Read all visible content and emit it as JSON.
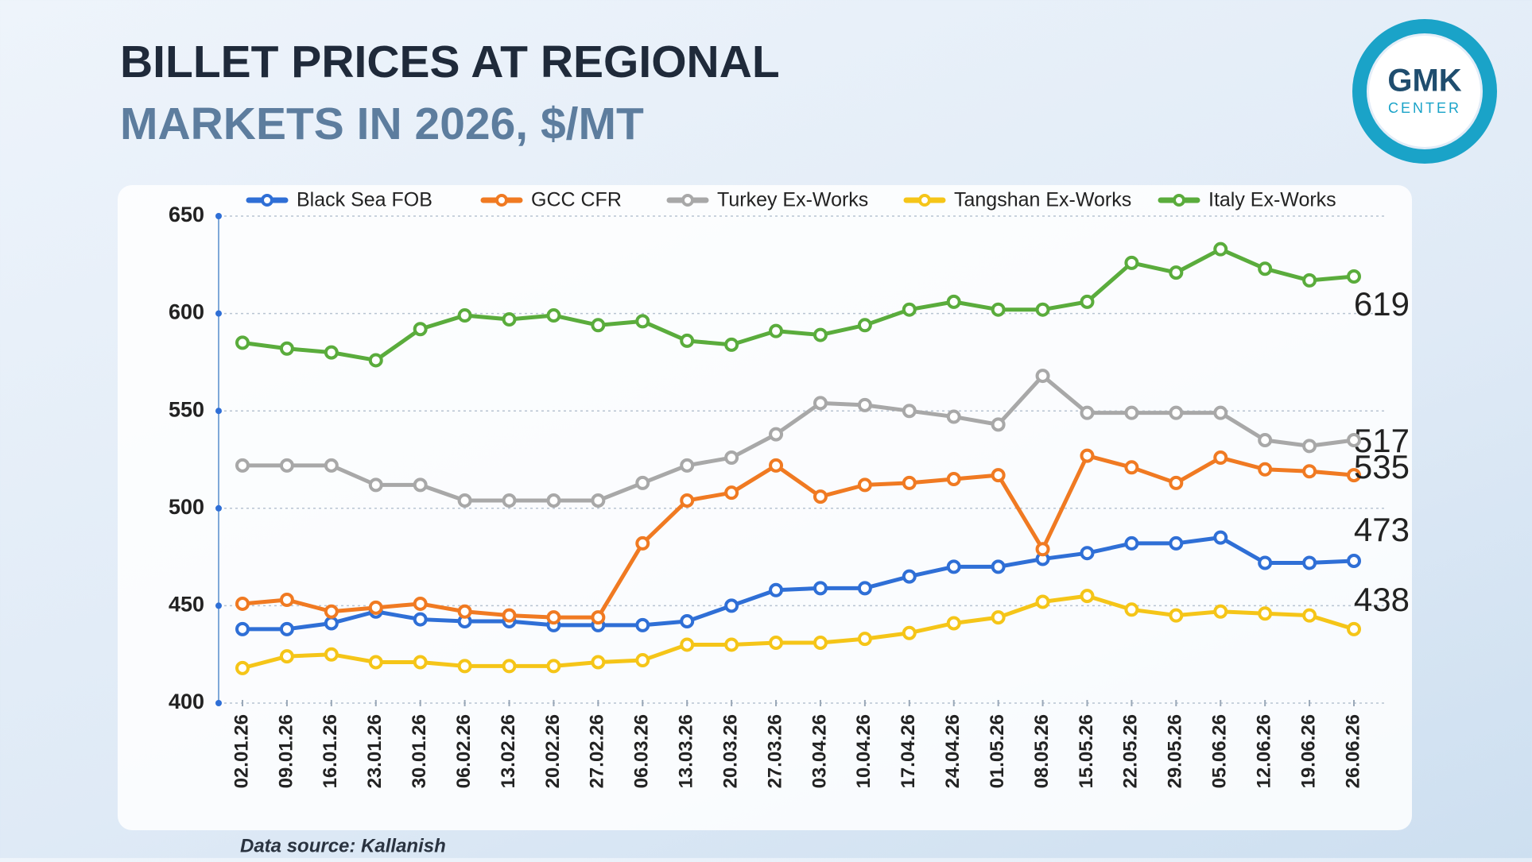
{
  "chart_data": {
    "type": "line",
    "title_lines": [
      "BILLET PRICES AT REGIONAL",
      "MARKETS IN 2026, $/MT"
    ],
    "source": "Data source: Kallanish",
    "logo": {
      "main": "GMK",
      "sub": "CENTER"
    },
    "categories": [
      "02.01.26",
      "09.01.26",
      "16.01.26",
      "23.01.26",
      "30.01.26",
      "06.02.26",
      "13.02.26",
      "20.02.26",
      "27.02.26",
      "06.03.26",
      "13.03.26",
      "20.03.26",
      "27.03.26",
      "03.04.26",
      "10.04.26",
      "17.04.26",
      "24.04.26",
      "01.05.26",
      "08.05.26",
      "15.05.26",
      "22.05.26",
      "29.05.26",
      "05.06.26",
      "12.06.26",
      "19.06.26",
      "26.06.26"
    ],
    "series": [
      {
        "name": "Black Sea FOB",
        "color": "#2f6fd6",
        "values": [
          438,
          438,
          441,
          447,
          443,
          442,
          442,
          440,
          440,
          440,
          442,
          450,
          458,
          459,
          459,
          465,
          470,
          470,
          474,
          477,
          482,
          482,
          485,
          472,
          472,
          473
        ]
      },
      {
        "name": "GCC CFR",
        "color": "#f07a22",
        "values": [
          451,
          453,
          447,
          449,
          451,
          447,
          445,
          444,
          444,
          482,
          504,
          508,
          522,
          506,
          512,
          513,
          515,
          517,
          479,
          527,
          521,
          513,
          526,
          520,
          519,
          517
        ]
      },
      {
        "name": "Turkey Ex-Works",
        "color": "#a8a8a8",
        "values": [
          522,
          522,
          522,
          512,
          512,
          504,
          504,
          504,
          504,
          513,
          522,
          526,
          538,
          554,
          553,
          550,
          547,
          543,
          568,
          549,
          549,
          549,
          549,
          535,
          532,
          535
        ]
      },
      {
        "name": "Tangshan Ex-Works",
        "color": "#f5c518",
        "values": [
          418,
          424,
          425,
          421,
          421,
          419,
          419,
          419,
          421,
          422,
          430,
          430,
          431,
          431,
          433,
          436,
          441,
          444,
          452,
          455,
          448,
          445,
          447,
          446,
          445,
          438
        ]
      },
      {
        "name": "Italy Ex-Works",
        "color": "#5aac3c",
        "values": [
          585,
          582,
          580,
          576,
          592,
          599,
          597,
          599,
          594,
          596,
          586,
          584,
          591,
          589,
          594,
          602,
          606,
          602,
          602,
          606,
          626,
          621,
          633,
          623,
          617,
          619
        ]
      }
    ],
    "ylim": [
      400,
      650
    ],
    "yticks": [
      400,
      450,
      500,
      550,
      600,
      650
    ],
    "grid": true
  }
}
